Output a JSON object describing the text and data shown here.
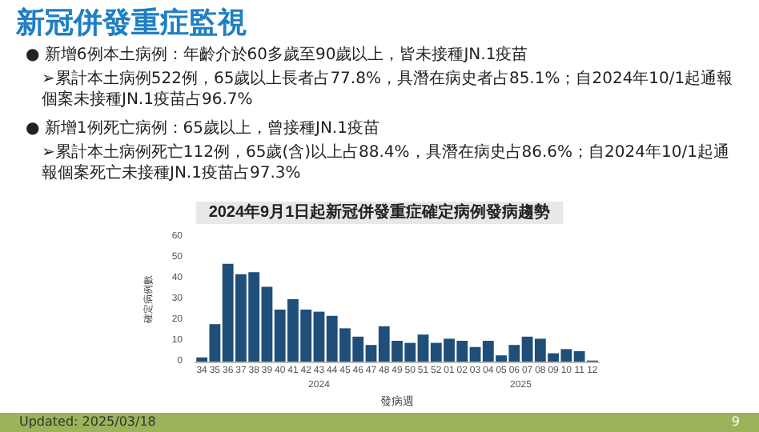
{
  "chart_data": {
    "type": "bar",
    "title": "新冠併發重症監視",
    "subtitle": "2024年9月1日起新冠併發重症確定病例發病趨勢",
    "xlabel": "發病週",
    "ylabel": "確定病例數",
    "categories": [
      "34",
      "35",
      "36",
      "37",
      "38",
      "39",
      "40",
      "41",
      "42",
      "43",
      "44",
      "45",
      "46",
      "47",
      "48",
      "49",
      "50",
      "51",
      "52",
      "01",
      "02",
      "03",
      "04",
      "05",
      "06",
      "07",
      "08",
      "09",
      "10",
      "11",
      "12"
    ],
    "values": [
      2,
      18,
      47,
      42,
      43,
      36,
      25,
      30,
      25,
      24,
      22,
      16,
      12,
      8,
      17,
      10,
      9,
      13,
      9,
      11,
      10,
      7,
      10,
      3,
      8,
      12,
      11,
      4,
      6,
      5,
      0.5
    ],
    "color": "#1f4e79",
    "ylim": [
      0,
      60
    ],
    "yticks": [
      0,
      10,
      20,
      30,
      40,
      50,
      60
    ],
    "grid": false,
    "annotations": [
      "● 新增6例本土病例：年齡介於60多歲至90歲以上，皆未接種JN.1疫苗",
      "➢累計本土病例522例，65歲以上長者占77.8%，具潛在病史者占85.1%；自2024年10/1起通報個案未接種JN.1疫苗占96.7%",
      "● 新增1例死亡病例：65歲以上，曾接種JN.1疫苗",
      "➢累計本土病例死亡112例，65歲(含)以上占88.4%，具潛在病史占86.6%；自2024年10/1起通報個案死亡未接種JN.1疫苗占97.3%",
      "2024",
      "2025",
      "Updated: 2025/03/18",
      "9"
    ]
  }
}
